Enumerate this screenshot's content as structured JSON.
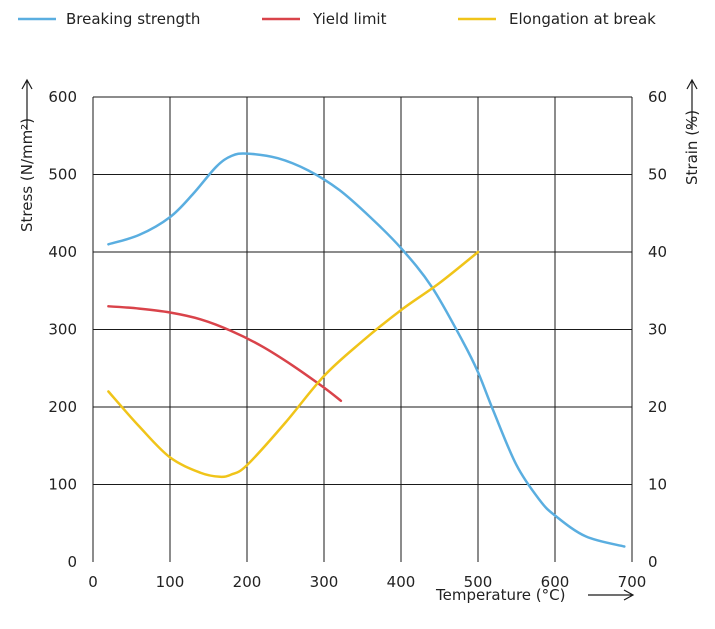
{
  "chart_data": {
    "type": "line",
    "xlabel": "Temperature (°C)",
    "ylabel_left": "Stress (N/mm²)",
    "ylabel_right": "Strain (%)",
    "xlim": [
      0,
      700
    ],
    "ylim_left": [
      0,
      600
    ],
    "ylim_right": [
      0,
      60
    ],
    "x_ticks": [
      0,
      100,
      200,
      300,
      400,
      500,
      600,
      700
    ],
    "y_ticks_left": [
      0,
      100,
      200,
      300,
      400,
      500,
      600
    ],
    "y_ticks_right": [
      0,
      10,
      20,
      30,
      40,
      50,
      60
    ],
    "grid": true,
    "legend_placement": "top",
    "series": [
      {
        "name": "Breaking strength",
        "axis": "left",
        "color": "#5aaee0",
        "x": [
          20,
          60,
          100,
          130,
          160,
          180,
          200,
          240,
          280,
          320,
          360,
          400,
          440,
          480,
          500,
          520,
          550,
          580,
          600,
          640,
          690
        ],
        "y": [
          410,
          422,
          445,
          475,
          510,
          524,
          527,
          521,
          505,
          480,
          445,
          405,
          355,
          285,
          245,
          195,
          125,
          80,
          60,
          33,
          20
        ]
      },
      {
        "name": "Yield limit",
        "axis": "left",
        "color": "#d9434a",
        "x": [
          20,
          60,
          100,
          140,
          180,
          220,
          260,
          300,
          322
        ],
        "y": [
          330,
          327,
          322,
          313,
          298,
          278,
          253,
          225,
          208
        ]
      },
      {
        "name": "Elongation at break",
        "axis": "right",
        "color": "#f0c419",
        "x": [
          20,
          60,
          100,
          140,
          165,
          180,
          200,
          250,
          300,
          350,
          400,
          450,
          500
        ],
        "y": [
          22,
          17.5,
          13.5,
          11.5,
          11,
          11.3,
          12.5,
          18,
          24,
          28.5,
          32.5,
          36,
          40
        ]
      }
    ]
  }
}
